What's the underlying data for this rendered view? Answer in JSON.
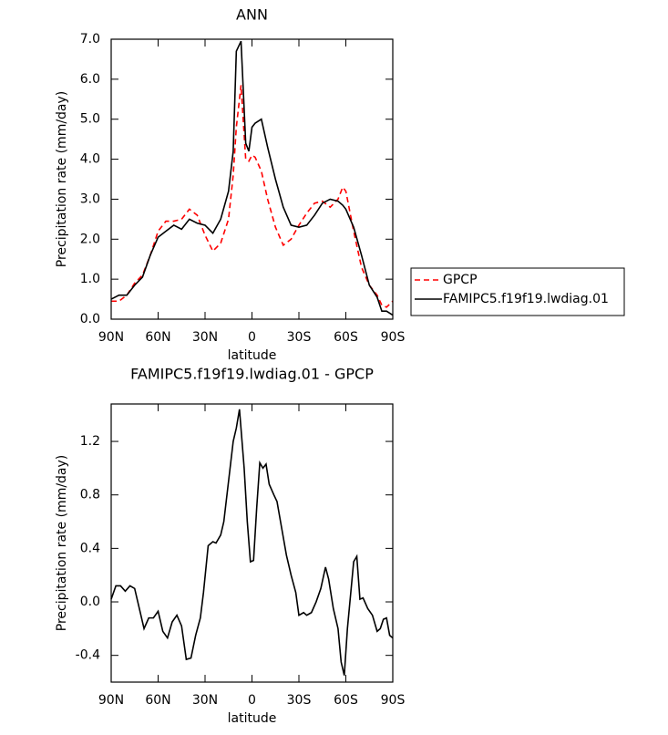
{
  "chart_data": [
    {
      "type": "line",
      "title": "ANN",
      "xlabel": "latitude",
      "ylabel": "Precipitation rate (mm/day)",
      "x": [
        90,
        85,
        80,
        75,
        70,
        65,
        60,
        55,
        50,
        45,
        40,
        35,
        30,
        25,
        20,
        15,
        12,
        10,
        7,
        4,
        2,
        0,
        -2,
        -6,
        -10,
        -15,
        -20,
        -25,
        -30,
        -35,
        -40,
        -45,
        -50,
        -55,
        -58,
        -60,
        -65,
        -70,
        -75,
        -80,
        -83,
        -86,
        -90
      ],
      "series": [
        {
          "name": "GPCP",
          "color": "#ff0000",
          "linestyle": "dashed",
          "values": [
            0.45,
            0.45,
            0.6,
            0.9,
            1.1,
            1.6,
            2.2,
            2.45,
            2.45,
            2.5,
            2.75,
            2.6,
            2.1,
            1.7,
            1.9,
            2.5,
            3.6,
            4.8,
            5.85,
            4.0,
            3.95,
            4.1,
            4.05,
            3.7,
            3.0,
            2.3,
            1.85,
            2.0,
            2.35,
            2.65,
            2.9,
            2.95,
            2.8,
            3.0,
            3.3,
            3.2,
            2.2,
            1.3,
            0.85,
            0.6,
            0.35,
            0.3,
            0.45
          ]
        },
        {
          "name": "FAMIPC5.f19f19.lwdiag.01",
          "color": "#000000",
          "linestyle": "solid",
          "values": [
            0.5,
            0.6,
            0.6,
            0.85,
            1.05,
            1.6,
            2.05,
            2.2,
            2.35,
            2.25,
            2.5,
            2.4,
            2.35,
            2.15,
            2.5,
            3.2,
            4.2,
            6.7,
            6.95,
            4.4,
            4.2,
            4.8,
            4.9,
            5.0,
            4.3,
            3.5,
            2.8,
            2.35,
            2.3,
            2.35,
            2.6,
            2.9,
            3.0,
            2.95,
            2.85,
            2.75,
            2.3,
            1.6,
            0.85,
            0.55,
            0.2,
            0.2,
            0.1
          ]
        }
      ],
      "xlim": [
        90,
        -90
      ],
      "xticks": [
        {
          "value": 90,
          "label": "90N"
        },
        {
          "value": 60,
          "label": "60N"
        },
        {
          "value": 30,
          "label": "30N"
        },
        0,
        {
          "value": -30,
          "label": "30S"
        },
        {
          "value": -60,
          "label": "60S"
        },
        {
          "value": -90,
          "label": "90S"
        }
      ],
      "ylim": [
        0,
        7
      ],
      "yticks": [
        {
          "value": 0,
          "label": "0.0"
        },
        {
          "value": 1,
          "label": "1.0"
        },
        {
          "value": 2,
          "label": "2.0"
        },
        {
          "value": 3,
          "label": "3.0"
        },
        {
          "value": 4,
          "label": "4.0"
        },
        {
          "value": 5,
          "label": "5.0"
        },
        {
          "value": 6,
          "label": "6.0"
        },
        {
          "value": 7,
          "label": "7.0"
        }
      ],
      "legend": "outside-right"
    },
    {
      "type": "line",
      "title": "FAMIPC5.f19f19.lwdiag.01 - GPCP",
      "xlabel": "latitude",
      "ylabel": "Precipitation rate (mm/day)",
      "x": [
        90,
        87,
        84,
        81,
        78,
        75,
        72,
        69,
        66,
        63,
        60,
        57,
        54,
        51,
        48,
        45,
        42,
        39,
        36,
        33,
        31,
        28,
        25,
        23,
        20,
        18,
        15,
        12,
        10,
        8,
        5,
        3,
        1,
        -1,
        -3,
        -5,
        -7,
        -9,
        -11,
        -14,
        -16,
        -19,
        -22,
        -25,
        -28,
        -30,
        -33,
        -35,
        -38,
        -41,
        -44,
        -47,
        -49,
        -52,
        -55,
        -57,
        -59,
        -61,
        -63,
        -65,
        -67,
        -69,
        -71,
        -74,
        -77,
        -80,
        -82,
        -84,
        -86,
        -88,
        -90
      ],
      "series": [
        {
          "color": "#000000",
          "linestyle": "solid",
          "values": [
            0.02,
            0.12,
            0.12,
            0.08,
            0.12,
            0.1,
            -0.05,
            -0.2,
            -0.12,
            -0.12,
            -0.07,
            -0.22,
            -0.27,
            -0.15,
            -0.1,
            -0.18,
            -0.43,
            -0.42,
            -0.25,
            -0.12,
            0.07,
            0.42,
            0.45,
            0.44,
            0.5,
            0.6,
            0.9,
            1.2,
            1.3,
            1.44,
            1.0,
            0.6,
            0.3,
            0.31,
            0.7,
            1.04,
            1.0,
            1.03,
            0.88,
            0.8,
            0.75,
            0.55,
            0.35,
            0.2,
            0.07,
            -0.1,
            -0.08,
            -0.1,
            -0.08,
            0.0,
            0.1,
            0.26,
            0.17,
            -0.05,
            -0.2,
            -0.45,
            -0.55,
            -0.2,
            0.05,
            0.3,
            0.34,
            0.02,
            0.03,
            -0.05,
            -0.1,
            -0.22,
            -0.2,
            -0.13,
            -0.12,
            -0.25,
            -0.27
          ]
        }
      ],
      "xlim": [
        90,
        -90
      ],
      "xticks": [
        {
          "value": 90,
          "label": "90N"
        },
        {
          "value": 60,
          "label": "60N"
        },
        {
          "value": 30,
          "label": "30N"
        },
        0,
        {
          "value": -30,
          "label": "30S"
        },
        {
          "value": -60,
          "label": "60S"
        },
        {
          "value": -90,
          "label": "90S"
        }
      ],
      "ylim": [
        -0.6,
        1.48
      ],
      "yticks": [
        -0.4,
        {
          "value": 0,
          "label": "0.0"
        },
        0.4,
        0.8,
        1.2
      ]
    }
  ]
}
